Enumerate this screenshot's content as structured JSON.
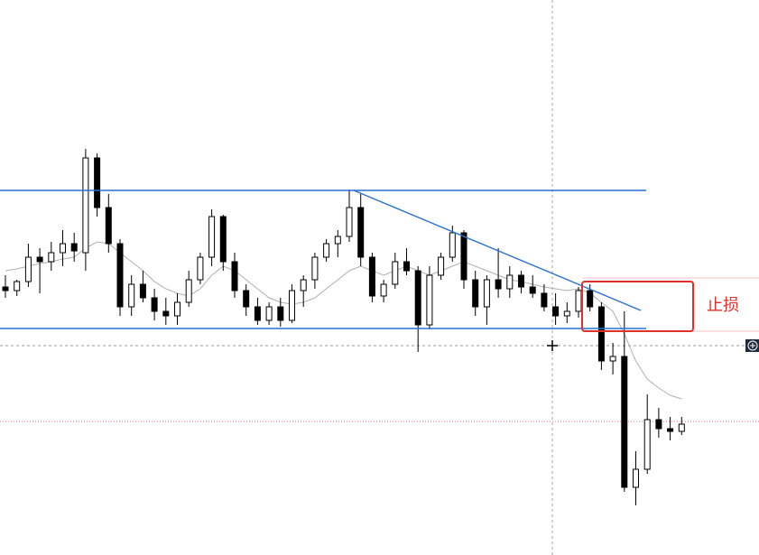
{
  "chart_data": {
    "type": "candlestick",
    "ylim": [
      0,
      615
    ],
    "open": [
      297,
      293,
      303,
      330,
      325,
      335,
      345,
      335,
      440,
      385,
      345,
      275,
      300,
      285,
      270,
      265,
      280,
      305,
      330,
      375,
      325,
      293,
      275,
      260,
      275,
      260,
      293,
      305,
      330,
      345,
      353,
      385,
      330,
      287,
      300,
      325,
      315,
      255,
      310,
      330,
      357,
      305,
      275,
      305,
      295,
      310,
      297,
      290,
      275,
      265,
      270,
      293,
      275,
      215,
      220,
      75,
      95,
      150,
      140,
      137
    ],
    "high": [
      310,
      305,
      345,
      340,
      347,
      360,
      357,
      450,
      445,
      400,
      350,
      310,
      315,
      295,
      285,
      290,
      315,
      335,
      383,
      377,
      335,
      300,
      285,
      280,
      285,
      300,
      310,
      335,
      350,
      360,
      405,
      400,
      335,
      305,
      335,
      340,
      320,
      320,
      335,
      365,
      360,
      315,
      310,
      340,
      320,
      315,
      310,
      300,
      290,
      280,
      297,
      300,
      280,
      235,
      270,
      115,
      178,
      163,
      153,
      153
    ],
    "low": [
      285,
      287,
      297,
      290,
      315,
      320,
      325,
      315,
      375,
      335,
      265,
      265,
      280,
      260,
      255,
      255,
      275,
      300,
      320,
      315,
      285,
      265,
      255,
      255,
      253,
      257,
      275,
      295,
      325,
      330,
      347,
      320,
      280,
      280,
      295,
      310,
      225,
      250,
      305,
      325,
      295,
      265,
      255,
      285,
      285,
      290,
      285,
      270,
      255,
      257,
      263,
      270,
      205,
      200,
      70,
      55,
      90,
      130,
      127,
      133
    ],
    "close": [
      293,
      303,
      330,
      325,
      335,
      345,
      337,
      440,
      385,
      345,
      275,
      300,
      285,
      270,
      265,
      280,
      305,
      330,
      375,
      325,
      293,
      275,
      260,
      275,
      260,
      293,
      305,
      330,
      345,
      353,
      385,
      330,
      287,
      300,
      325,
      315,
      255,
      310,
      330,
      357,
      305,
      275,
      305,
      295,
      310,
      297,
      290,
      275,
      265,
      270,
      293,
      275,
      215,
      220,
      75,
      95,
      150,
      140,
      137,
      145
    ],
    "ma": [
      315,
      317,
      320,
      323,
      325,
      328,
      330,
      340,
      347,
      345,
      335,
      325,
      315,
      303,
      295,
      290,
      287,
      295,
      310,
      320,
      315,
      305,
      295,
      285,
      280,
      278,
      280,
      285,
      295,
      305,
      315,
      320,
      315,
      310,
      315,
      320,
      315,
      310,
      315,
      320,
      325,
      320,
      315,
      310,
      305,
      303,
      300,
      297,
      295,
      293,
      295,
      290,
      280,
      270,
      245,
      215,
      195,
      185,
      177,
      173
    ],
    "annotation": "止损"
  }
}
